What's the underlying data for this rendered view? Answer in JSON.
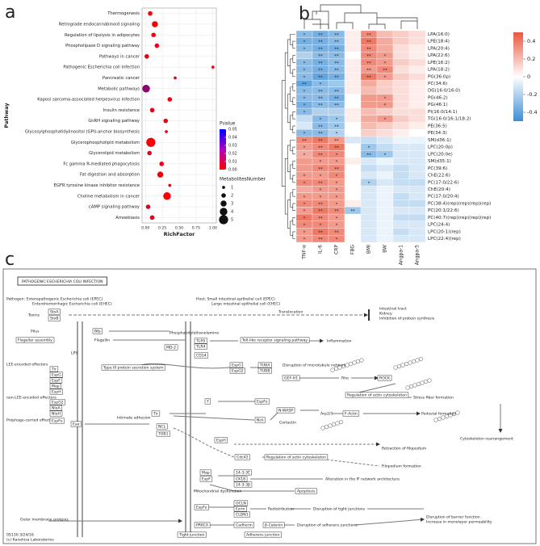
{
  "panels": [
    "a",
    "b",
    "c"
  ],
  "chart_data": [
    {
      "type": "scatter",
      "y_label": "Pathway",
      "x_label": "RichFactor",
      "categories": [
        "Thermogenesis",
        "Retrograde endocannabinoid signaling",
        "Regulation of lipolysis in adipocytes",
        "Phospholipase D signaling pathway",
        "Pathways in cancer",
        "Pathogenic Escherichia coli infection",
        "Pancreatic cancer",
        "Metabolic pathways",
        "Kaposi sarcoma-associated herpesvirus infection",
        "Insulin resistance",
        "GnRH signaling pathway",
        "Glycosylphosphatidylinositol (GPI)-anchor biosynthesis",
        "Glycerophospholipid metabolism",
        "Glycerolipid metabolism",
        "Fc gamma R-mediated phagocytosis",
        "Fat digestion and absorption",
        "EGFR tyrosine kinase inhibitor resistance",
        "Choline metabolism in cancer",
        "cAMP signaling pathway",
        "Amoebiasis"
      ],
      "values": [
        0.07,
        0.14,
        0.12,
        0.17,
        0.02,
        1.0,
        0.44,
        0.01,
        0.36,
        0.1,
        0.3,
        0.31,
        0.08,
        0.06,
        0.24,
        0.22,
        0.36,
        0.32,
        0.04,
        0.1
      ],
      "pvalues": [
        0.002,
        0.001,
        0.003,
        0.004,
        0.005,
        0.003,
        0.006,
        0.022,
        0.004,
        0.005,
        0.003,
        0.004,
        0.001,
        0.006,
        0.004,
        0.002,
        0.005,
        0.001,
        0.007,
        0.005
      ],
      "sizes": [
        2,
        3,
        2,
        2,
        2,
        1,
        1,
        4,
        2,
        2,
        2,
        1,
        5,
        2,
        2,
        3,
        1,
        4,
        2,
        2
      ],
      "xlim": [
        -0.05,
        1.05
      ],
      "xticks": [
        {
          "value": 0,
          "label": "0.00"
        },
        0.25,
        {
          "value": 0.5,
          "label": "0.50"
        },
        0.75,
        {
          "value": 1,
          "label": "1.00"
        }
      ],
      "color_title": "Pvalue",
      "color_lim": [
        0,
        0.05
      ],
      "colors": [
        "#ff0000",
        "#0000ff"
      ],
      "color_ticks": [
        0.05,
        0.04,
        0.03,
        0.02,
        0.01,
        {
          "value": 0,
          "label": "0.00"
        }
      ],
      "size_title": "MetabolitesNumber",
      "size_ticks": [
        1,
        2,
        3,
        4,
        5
      ],
      "grid": true
    },
    {
      "type": "heatmap",
      "columns": [
        "TNF-α",
        "IL-6",
        "CRP",
        "FBG",
        "BMI",
        "BW",
        "Angpa-1",
        "Angpa-5"
      ],
      "rows": [
        "LPA(16:0)",
        "LPE(18:4)",
        "LPA(20:4)",
        "LPA(22:6)",
        "LPE(16:2)",
        "LPA(18:2)",
        "PG(36:0p)",
        "PC(34:6)",
        "DG(16:0/16:0)",
        "PG(46:2)",
        "PG(46:1)",
        "PI(16:0/14:1)",
        "TG(16:0/16:1/18:2)",
        "PE(36:5)",
        "PE(34:3)",
        "SM(d36:1)",
        "LPC(20:0p)",
        "LPC(20:0e)",
        "SM(d35:1)",
        "PC(39:6)",
        "ChE(22:6)",
        "PC(17:0/22:6)",
        "ChE(20:4)",
        "PC(17:0/20:4)",
        "PC(38:4)(rep)(rep)(rep)(rep)",
        "PC(20:1/22:6)",
        "PC(40:7)(rep)(rep)(rep)(rep)",
        "LPC(24:4)",
        "LPC(20:1)(rep)",
        "LPC(22:4)(rep)"
      ],
      "values": [
        [
          -0.3,
          -0.35,
          -0.3,
          0.05,
          0.35,
          0.2,
          0.15,
          0.1
        ],
        [
          -0.35,
          -0.35,
          -0.3,
          0.05,
          0.4,
          0.25,
          0.15,
          0.1
        ],
        [
          -0.3,
          -0.35,
          -0.35,
          0.05,
          0.35,
          0.25,
          0.1,
          0.05
        ],
        [
          -0.2,
          -0.3,
          -0.3,
          0,
          0.35,
          0.3,
          0.1,
          0.05
        ],
        [
          -0.3,
          -0.35,
          -0.3,
          0.05,
          0.35,
          0.3,
          0.15,
          0.1
        ],
        [
          -0.3,
          -0.35,
          -0.3,
          0.05,
          0.3,
          0.35,
          0.1,
          0.05
        ],
        [
          -0.3,
          -0.4,
          -0.35,
          0.05,
          0.4,
          0.3,
          0.15,
          0.1
        ],
        [
          -0.4,
          -0.3,
          -0.25,
          0.05,
          0.25,
          0.15,
          0.1,
          0.05
        ],
        [
          -0.3,
          -0.3,
          -0.3,
          0.05,
          0.2,
          0.15,
          0.1,
          0.05
        ],
        [
          -0.3,
          -0.3,
          -0.35,
          0,
          0.3,
          0.3,
          0.1,
          0.05
        ],
        [
          -0.35,
          -0.3,
          -0.3,
          0,
          0.3,
          0.3,
          0.1,
          0.05
        ],
        [
          -0.3,
          -0.2,
          -0.2,
          0.05,
          0.2,
          0.15,
          0.1,
          0.1
        ],
        [
          -0.15,
          -0.3,
          -0.25,
          0.05,
          0.25,
          0.3,
          0.15,
          0.1
        ],
        [
          -0.1,
          -0.3,
          -0.25,
          0,
          0.2,
          0.15,
          0.1,
          0.05
        ],
        [
          -0.3,
          -0.3,
          -0.2,
          0,
          0.15,
          0.1,
          0.05,
          0
        ],
        [
          0.35,
          0.4,
          0.3,
          -0.1,
          -0.15,
          -0.1,
          -0.05,
          -0.05
        ],
        [
          0.3,
          0.35,
          0.4,
          0,
          -0.25,
          -0.15,
          -0.1,
          -0.1
        ],
        [
          0.25,
          0.35,
          0.35,
          0,
          -0.3,
          -0.25,
          -0.1,
          -0.1
        ],
        [
          0.3,
          0.3,
          0.3,
          0.05,
          -0.1,
          -0.05,
          -0.1,
          -0.1
        ],
        [
          0.3,
          0.35,
          0.35,
          0,
          -0.15,
          -0.1,
          -0.15,
          -0.1
        ],
        [
          0.3,
          0.3,
          0.35,
          0,
          -0.1,
          -0.05,
          -0.15,
          -0.1
        ],
        [
          0.35,
          0.35,
          0.3,
          0,
          -0.2,
          -0.1,
          -0.15,
          -0.15
        ],
        [
          0.25,
          0.3,
          0.3,
          0,
          -0.1,
          -0.05,
          -0.1,
          -0.1
        ],
        [
          0.3,
          0.3,
          0.3,
          0,
          -0.1,
          -0.05,
          -0.15,
          -0.1
        ],
        [
          0.35,
          0.35,
          0.3,
          0.05,
          -0.1,
          -0.05,
          -0.15,
          -0.15
        ],
        [
          0.3,
          0.4,
          0.35,
          -0.25,
          -0.1,
          -0.05,
          -0.1,
          -0.1
        ],
        [
          0.4,
          0.35,
          0.3,
          0,
          -0.1,
          -0.05,
          -0.15,
          -0.15
        ],
        [
          0.35,
          0.35,
          0.3,
          0,
          -0.1,
          -0.05,
          -0.1,
          -0.1
        ],
        [
          0.3,
          0.4,
          0.35,
          0,
          -0.1,
          -0.05,
          -0.15,
          -0.1
        ],
        [
          0.3,
          0.35,
          0.35,
          0,
          -0.1,
          -0.05,
          -0.1,
          -0.1
        ]
      ],
      "stars": [
        [
          "*",
          "**",
          "**",
          null,
          "**",
          null,
          null,
          null
        ],
        [
          "*",
          "**",
          "**",
          null,
          "**",
          null,
          null,
          null
        ],
        [
          "*",
          "**",
          "**",
          null,
          "**",
          null,
          null,
          null
        ],
        [
          null,
          "**",
          "**",
          null,
          "**",
          "*",
          null,
          null
        ],
        [
          "*",
          "**",
          "**",
          null,
          "**",
          "*",
          null,
          null
        ],
        [
          "*",
          "**",
          "**",
          null,
          "**",
          "**",
          null,
          null
        ],
        [
          "*",
          "**",
          "**",
          null,
          "**",
          "*",
          null,
          null
        ],
        [
          "**",
          "*",
          null,
          null,
          null,
          null,
          null,
          null
        ],
        [
          "*",
          "**",
          "**",
          null,
          null,
          null,
          null,
          null
        ],
        [
          "*",
          "**",
          "**",
          null,
          null,
          "*",
          null,
          null
        ],
        [
          "*",
          "**",
          "**",
          null,
          null,
          "*",
          null,
          null
        ],
        [
          "*",
          null,
          null,
          null,
          null,
          null,
          null,
          null
        ],
        [
          null,
          "*",
          "*",
          null,
          null,
          "*",
          null,
          null
        ],
        [
          null,
          "**",
          "**",
          null,
          null,
          null,
          null,
          null
        ],
        [
          "*",
          "**",
          "*",
          null,
          null,
          null,
          null,
          null
        ],
        [
          "**",
          "**",
          "**",
          null,
          null,
          null,
          null,
          null
        ],
        [
          "*",
          "**",
          "**",
          null,
          "*",
          null,
          null,
          null
        ],
        [
          "*",
          "**",
          "*",
          null,
          "**",
          "*",
          null,
          null
        ],
        [
          null,
          "*",
          "*",
          null,
          null,
          null,
          null,
          null
        ],
        [
          null,
          "**",
          "**",
          null,
          null,
          null,
          null,
          null
        ],
        [
          "*",
          "*",
          "*",
          null,
          null,
          null,
          null,
          null
        ],
        [
          "*",
          "**",
          "*",
          null,
          "*",
          null,
          null,
          null
        ],
        [
          null,
          "*",
          "*",
          null,
          null,
          null,
          null,
          null
        ],
        [
          "*",
          "*",
          "*",
          null,
          null,
          null,
          null,
          null
        ],
        [
          "*",
          "**",
          "*",
          null,
          null,
          null,
          null,
          null
        ],
        [
          "*",
          "**",
          "**",
          "**",
          null,
          null,
          null,
          null
        ],
        [
          "*",
          "**",
          "*",
          null,
          null,
          null,
          null,
          null
        ],
        [
          "*",
          "*",
          "*",
          null,
          null,
          null,
          null,
          null
        ],
        [
          "*",
          "**",
          "**",
          null,
          null,
          null,
          null,
          null
        ],
        [
          "*",
          "**",
          "*",
          null,
          null,
          null,
          null,
          null
        ]
      ],
      "zlim": [
        -0.5,
        0.5
      ],
      "low_color": "#3b8ed6",
      "mid_color": "#ffffff",
      "high_color": "#e9573f",
      "colorbar_ticks": [
        0.4,
        0.2,
        0,
        -0.2,
        -0.4
      ]
    }
  ],
  "pathway": {
    "title": "PATHOGENIC ESCHERICHIA COLI INFECTION",
    "labels": [
      "Pathogen: Enteropathogenic Escherichia coli (EPEC)",
      "Enterohemorrhagic Escherichia coli (EHEC)",
      "Host: Small intestinal epithelial cell (EPEC)",
      "Large intestinal epithelial cell (EHEC)",
      "Toxins",
      "StxA",
      "StxB",
      "Translocation",
      "Intestinal tract",
      "Kidney",
      "Inhibition of protein synthesis",
      "Pilus",
      "Flagellar assembly",
      "Bfp",
      "Flagellin",
      "Phosphatidylethanolamine",
      "TLR5",
      "TLR4",
      "MD-2",
      "Toll-like receptor signaling pathway",
      "Inflammation",
      "LPS",
      "CD14",
      "LEE-encoded effectors",
      "Tir",
      "EspG",
      "EspF",
      "Map",
      "EspH",
      "Type III protein secretion system",
      "EspG",
      "EspG2",
      "TUBA",
      "TUBB",
      "Disruption of microtubule network",
      "GEF-H1",
      "Rho",
      "ROCK",
      "non-LEE-encoded effectors",
      "EspG2",
      "NleA",
      "NleH",
      "Prophage-carried effectors",
      "EspFu",
      "Regulation of actin cytoskeleton",
      "Stress fiber formation",
      "Intimate adhesion",
      "Eae",
      "Tir",
      "Y",
      "EspFu",
      "Nck",
      "N-WASP",
      "Cortactin",
      "Arp2/3",
      "F-Actin",
      "Pedestal formation",
      "Cytoskeleton rearrangement",
      "NCL",
      "TOB1",
      "EspH",
      "Cdc42",
      "Regulation of actin cytoskeleton",
      "Retraction of filopodium",
      "Filopodium formation",
      "Map",
      "EspF",
      "14-3-3ζ",
      "CK18",
      "14-3-3β",
      "Alteration in the IF network architecture",
      "Mitochondrial dysfunction",
      "Apoptosis",
      "EspFu",
      "OCLN",
      "Ezrin",
      "CLDN1",
      "Redistribution",
      "Disruption of tight junctions",
      "Disruption of barrier function",
      "Increase in monolayer permeability",
      "Outer membrane proteins",
      "PRKCA",
      "Cadherin",
      "β-Catenin",
      "Disruption of adherens junctions",
      "Tight junction",
      "Adherens junction",
      "05130 3/24/16",
      "(c) Kanehisa Laboratories"
    ]
  }
}
